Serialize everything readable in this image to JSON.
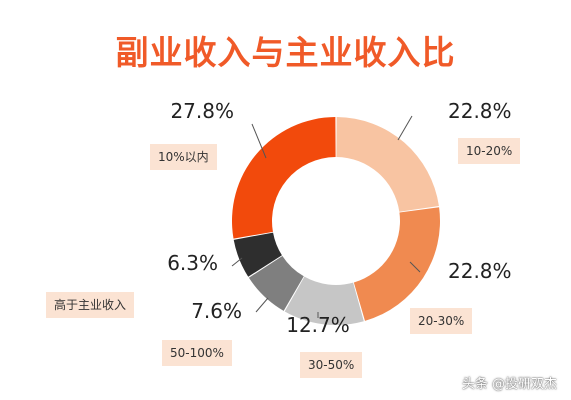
{
  "title": "副业收入与主业收入比",
  "watermark": "头条 @投研双杰",
  "chart_data": {
    "type": "pie",
    "style": "donut",
    "title": "副业收入与主业收入比",
    "slices": [
      {
        "label": "10-20%",
        "value": 22.8,
        "value_label": "22.8%",
        "color": "#f8c4a2"
      },
      {
        "label": "20-30%",
        "value": 22.8,
        "value_label": "22.8%",
        "color": "#f08a50"
      },
      {
        "label": "30-50%",
        "value": 12.7,
        "value_label": "12.7%",
        "color": "#c6c6c6"
      },
      {
        "label": "50-100%",
        "value": 7.6,
        "value_label": "7.6%",
        "color": "#7f7f7f"
      },
      {
        "label": "高于主业收入",
        "value": 6.3,
        "value_label": "6.3%",
        "color": "#2e2e2e"
      },
      {
        "label": "10%以内",
        "value": 27.8,
        "value_label": "27.8%",
        "color": "#f24a0c"
      }
    ]
  }
}
